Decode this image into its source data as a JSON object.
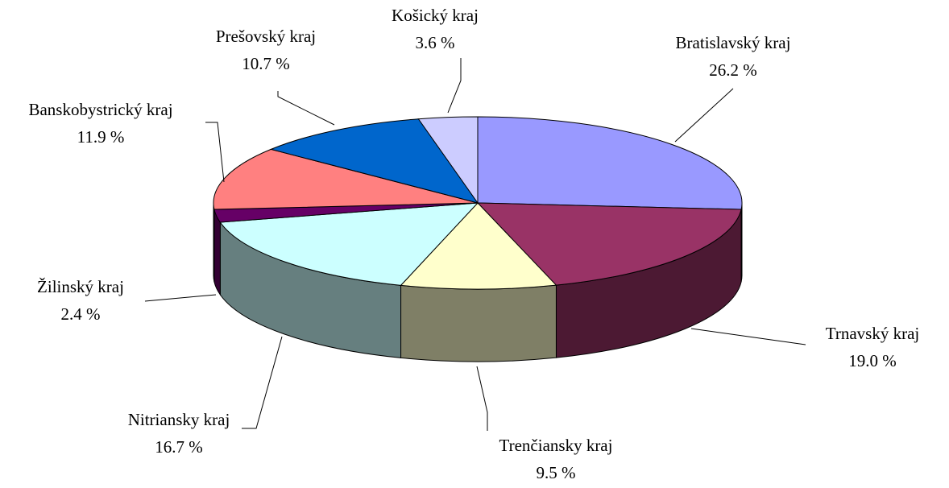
{
  "chart_data": {
    "type": "pie3d",
    "categories": [
      "Bratislavský kraj",
      "Trnavský kraj",
      "Trenčiansky kraj",
      "Nitriansky kraj",
      "Žilinský kraj",
      "Banskobystrický kraj",
      "Prešovský kraj",
      "Košický kraj"
    ],
    "values": [
      26.2,
      19.0,
      9.5,
      16.7,
      2.4,
      11.9,
      10.7,
      3.6
    ],
    "value_labels": [
      "26.2 %",
      "19.0 %",
      "9.5 %",
      "16.7 %",
      "2.4 %",
      "11.9 %",
      "10.7 %",
      "3.6 %"
    ],
    "colors": [
      "#9999ff",
      "#993366",
      "#ffffcc",
      "#ccffff",
      "#660066",
      "#ff8080",
      "#0066cc",
      "#ccccff"
    ]
  }
}
